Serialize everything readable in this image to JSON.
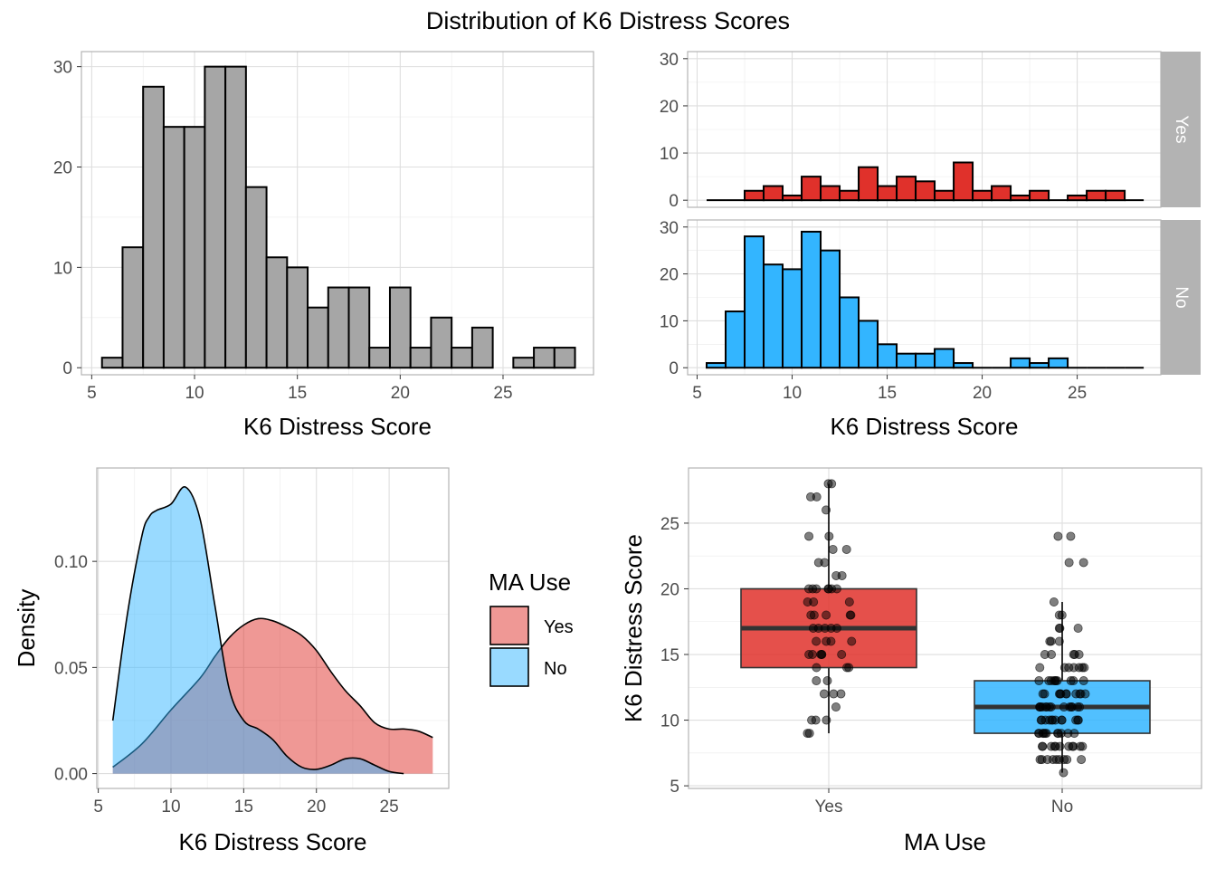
{
  "figure": {
    "title": "Distribution of K6 Distress Scores"
  },
  "colors": {
    "grey": "#A6A6A6",
    "yes": "#E0312B",
    "no": "#33B5FF",
    "grid": "#DEDEDE",
    "panel_border": "#B3B3B3",
    "strip": "#B3B3B3"
  },
  "chart_data": [
    {
      "type": "bar",
      "panel": "histogram-all",
      "xlabel": "K6 Distress Score",
      "ylabel": "",
      "xlim": [
        4.5,
        29.4
      ],
      "ylim": [
        -0.7,
        31.5
      ],
      "xticks": [
        5,
        10,
        15,
        20,
        25
      ],
      "yticks": [
        0,
        10,
        20,
        30
      ],
      "bins": {
        "x": [
          6,
          7,
          8,
          9,
          10,
          11,
          12,
          13,
          14,
          15,
          16,
          17,
          18,
          19,
          20,
          21,
          22,
          23,
          24,
          25,
          26,
          27,
          28
        ],
        "values": [
          1,
          12,
          28,
          24,
          24,
          30,
          30,
          18,
          11,
          10,
          6,
          8,
          8,
          2,
          8,
          2,
          5,
          2,
          4,
          0,
          1,
          2,
          2
        ]
      },
      "color": "#A6A6A6"
    },
    {
      "type": "bar",
      "panel": "histogram-faceted",
      "xlabel": "K6 Distress Score",
      "ylabel": "",
      "xlim": [
        4.5,
        29.4
      ],
      "ylim": [
        -1.5,
        31.5
      ],
      "xticks": [
        5,
        10,
        15,
        20,
        25
      ],
      "yticks": [
        0,
        10,
        20,
        30
      ],
      "x": [
        6,
        7,
        8,
        9,
        10,
        11,
        12,
        13,
        14,
        15,
        16,
        17,
        18,
        19,
        20,
        21,
        22,
        23,
        24,
        25,
        26,
        27,
        28
      ],
      "series": [
        {
          "name": "Yes",
          "values": [
            0,
            0,
            2,
            3,
            1,
            5,
            3,
            2,
            7,
            3,
            5,
            4,
            2,
            8,
            2,
            3,
            1,
            2,
            0,
            1,
            2,
            2,
            0
          ],
          "color": "#E0312B"
        },
        {
          "name": "No",
          "values": [
            1,
            12,
            28,
            22,
            21,
            29,
            25,
            15,
            10,
            5,
            3,
            3,
            4,
            1,
            0,
            0,
            2,
            1,
            2,
            0,
            0,
            0,
            0
          ],
          "color": "#33B5FF"
        }
      ]
    },
    {
      "type": "area",
      "panel": "density",
      "xlabel": "K6 Distress Score",
      "ylabel": "Density",
      "xlim": [
        4.9,
        29.1
      ],
      "ylim": [
        -0.007,
        0.144
      ],
      "xticks": [
        5,
        10,
        15,
        20,
        25
      ],
      "yticks": [
        0.0,
        0.05,
        0.1
      ],
      "ytick_labels": [
        "0.00",
        "0.05",
        "0.10"
      ],
      "legend": {
        "title": "MA Use",
        "position": "right"
      },
      "series": [
        {
          "name": "Yes",
          "color": "#E0312B",
          "x": [
            6,
            8,
            10,
            12,
            13,
            14,
            15,
            16,
            17,
            18,
            19,
            20,
            21,
            22,
            23,
            24,
            25,
            26,
            27,
            28
          ],
          "values": [
            0.003,
            0.014,
            0.03,
            0.045,
            0.055,
            0.064,
            0.07,
            0.073,
            0.072,
            0.069,
            0.065,
            0.058,
            0.048,
            0.039,
            0.032,
            0.024,
            0.021,
            0.021,
            0.02,
            0.017
          ]
        },
        {
          "name": "No",
          "color": "#33B5FF",
          "x": [
            6,
            7,
            8,
            8.5,
            9,
            10,
            11,
            12,
            13,
            14,
            15,
            16,
            17,
            18,
            19,
            20,
            21,
            22,
            23,
            24,
            25,
            26
          ],
          "values": [
            0.025,
            0.075,
            0.112,
            0.121,
            0.124,
            0.127,
            0.135,
            0.12,
            0.08,
            0.04,
            0.025,
            0.021,
            0.016,
            0.008,
            0.003,
            0.002,
            0.004,
            0.007,
            0.007,
            0.004,
            0.001,
            0.0
          ]
        }
      ]
    },
    {
      "type": "box",
      "panel": "boxplot",
      "xlabel": "MA Use",
      "ylabel": "K6 Distress Score",
      "ylim": [
        4.8,
        29.2
      ],
      "yticks": [
        5,
        10,
        15,
        20,
        25
      ],
      "categories": [
        "Yes",
        "No"
      ],
      "boxes": [
        {
          "name": "Yes",
          "min": 9,
          "q1": 14,
          "median": 17,
          "q3": 20,
          "max": 28,
          "color": "#E0312B",
          "points": [
            28,
            28,
            27,
            27,
            26,
            24,
            24,
            23,
            23,
            22,
            22,
            21,
            21,
            20,
            20,
            20,
            20,
            20,
            20,
            20,
            19,
            19,
            19,
            18,
            18,
            18,
            18,
            18,
            17,
            17,
            17,
            17,
            17,
            16,
            16,
            16,
            16,
            15,
            15,
            15,
            15,
            15,
            15,
            14,
            14,
            14,
            13,
            13,
            12,
            12,
            12,
            11,
            10,
            10,
            10,
            9,
            9
          ]
        },
        {
          "name": "No",
          "min": 6,
          "q1": 9,
          "median": 11,
          "q3": 13,
          "max": 19,
          "color": "#33B5FF",
          "points": [
            24,
            24,
            22,
            22,
            19,
            18,
            18,
            17,
            17,
            17,
            16,
            16,
            16,
            15,
            15,
            15,
            15,
            15,
            14,
            14,
            14,
            14,
            14,
            14,
            14,
            13,
            13,
            13,
            13,
            13,
            13,
            13,
            13,
            13,
            13,
            12,
            12,
            12,
            12,
            12,
            12,
            12,
            12,
            12,
            12,
            12,
            11,
            11,
            11,
            11,
            11,
            11,
            11,
            11,
            11,
            11,
            11,
            11,
            11,
            11,
            10,
            10,
            10,
            10,
            10,
            10,
            10,
            10,
            10,
            10,
            10,
            10,
            9,
            9,
            9,
            9,
            9,
            9,
            9,
            9,
            9,
            9,
            9,
            8,
            8,
            8,
            8,
            8,
            8,
            8,
            8,
            8,
            8,
            8,
            7,
            7,
            7,
            7,
            7,
            7,
            7,
            7,
            7,
            6
          ]
        }
      ]
    }
  ]
}
